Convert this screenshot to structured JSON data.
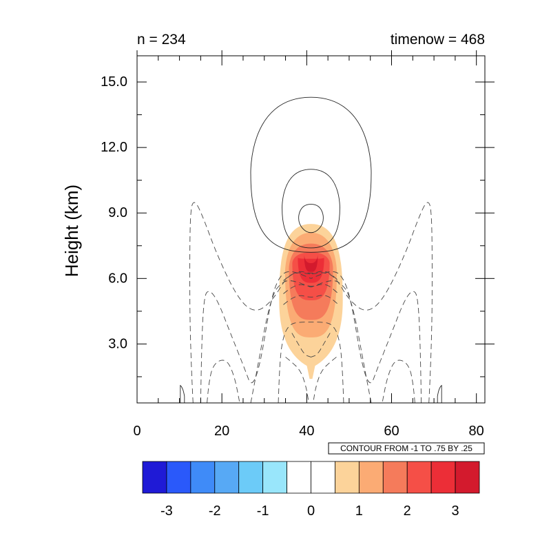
{
  "left_title": "n = 234",
  "right_title": "timenow = 468",
  "info_label": "CONTOUR FROM -1 TO .75 BY .25",
  "chart_data": {
    "type": "contour",
    "ylabel": "Height (km)",
    "xlabel": "",
    "xlim": [
      0,
      82
    ],
    "ylim": [
      0.3,
      16.2
    ],
    "x_ticks": [
      0,
      20,
      40,
      60,
      80
    ],
    "x_tick_labels": [
      "0",
      "20",
      "40",
      "60",
      "80"
    ],
    "y_ticks": [
      3,
      6,
      9,
      12,
      15
    ],
    "y_tick_labels": [
      "3.0",
      "6.0",
      "9.0",
      "12.0",
      "15.0"
    ],
    "filled_field": {
      "center_x": 41,
      "peak_height": 6.6,
      "base_height": 1.4,
      "top_height": 8.5,
      "half_width": 7.5
    },
    "line_contours": {
      "levels": {
        "from": -1,
        "to": 0.75,
        "step": 0.25
      },
      "positive": "solid",
      "negative": "dashed",
      "solid_top_heights": [
        14.3,
        11.0,
        9.4
      ],
      "solid_half_widths": [
        14.2,
        6.8,
        2.9
      ]
    },
    "colorbar": {
      "colors": [
        "#1f1ad6",
        "#2a59fa",
        "#3f8bf8",
        "#57a9f5",
        "#6ccbf8",
        "#99e6fb",
        "#ffffff",
        "#ffffff",
        "#fcd39a",
        "#fbab74",
        "#f57b5b",
        "#f54f47",
        "#ec2e37",
        "#d31a2d"
      ],
      "tick_values": [
        -3,
        -2,
        -1,
        0,
        1,
        2,
        3
      ],
      "tick_labels": [
        "-3",
        "-2",
        "-1",
        "0",
        "1",
        "2",
        "3"
      ]
    }
  }
}
